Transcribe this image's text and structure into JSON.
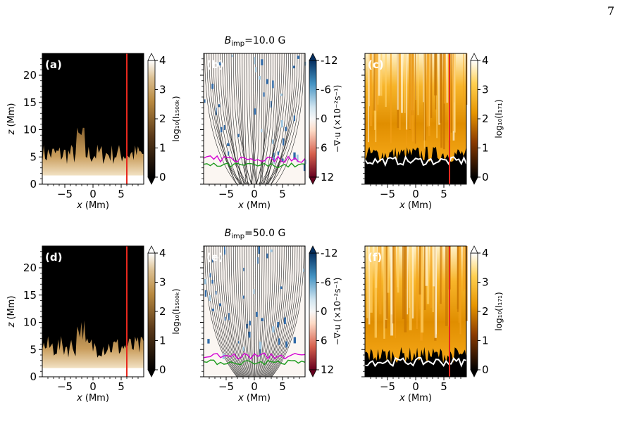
{
  "page": {
    "number": "7"
  },
  "figure": {
    "rows": [
      {
        "field_label": "B",
        "field_sub": "imp",
        "field_value": "=10.0 G"
      },
      {
        "field_label": "B",
        "field_sub": "imp",
        "field_value": "=50.0 G"
      }
    ],
    "panel_labels": [
      "(a)",
      "(b)",
      "(c)",
      "(d)",
      "(e)",
      "(f)"
    ],
    "x_axis": {
      "label": "x (Mm)",
      "ticks": [
        "−5",
        "0",
        "5"
      ],
      "range": [
        -9,
        9
      ]
    },
    "z_axis": {
      "label": "z (Mm)",
      "ticks": [
        "0",
        "5",
        "10",
        "15",
        "20"
      ],
      "range": [
        0,
        24
      ]
    },
    "colorbars": {
      "chromo": {
        "label": "log₁₀(I₁₅₀₀ₖ)",
        "ticks": [
          "0",
          "1",
          "2",
          "3",
          "4"
        ],
        "colormap": "copper"
      },
      "divergence": {
        "label": "−∇·u (×10⁻²s⁻¹)",
        "ticks": [
          "-12",
          "-6",
          "0",
          "6",
          "12"
        ],
        "colormap": "RdBu"
      },
      "aia171": {
        "label": "log₁₀(I₁₇₁)",
        "ticks": [
          "0",
          "1",
          "2",
          "3",
          "4"
        ],
        "colormap": "afmhot"
      }
    },
    "slit_x_mm": 6,
    "colors": {
      "slit": "#e8281e",
      "field_line": "#2a2a2a",
      "contour_magenta": "#d400d4",
      "contour_green": "#1a9a1a"
    }
  }
}
